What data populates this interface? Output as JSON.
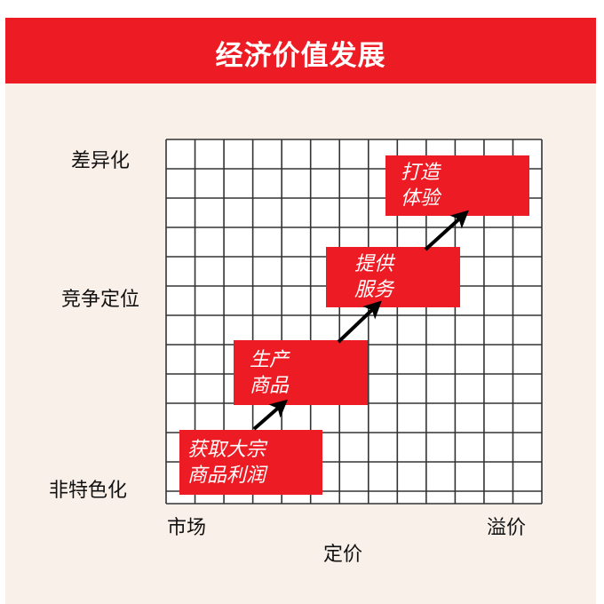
{
  "title": "经济价值发展",
  "y_axis": {
    "top": "差异化",
    "middle": "竞争定位",
    "bottom": "非特色化"
  },
  "x_axis": {
    "left": "市场",
    "right": "溢价",
    "label": "定价"
  },
  "stages": [
    {
      "line1": "获取大宗",
      "line2": "商品利润"
    },
    {
      "line1": "生产",
      "line2": "商品"
    },
    {
      "line1": "提供",
      "line2": "服务"
    },
    {
      "line1": "打造",
      "line2": "体验"
    }
  ],
  "colors": {
    "accent": "#ed1c24",
    "background": "#f9f0ea",
    "grid": "#333333",
    "arrow": "#000000"
  }
}
